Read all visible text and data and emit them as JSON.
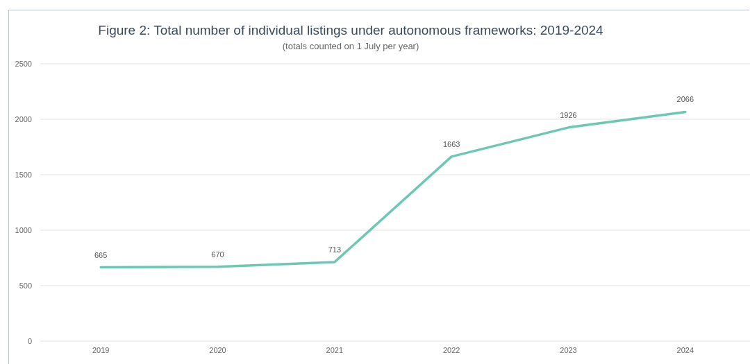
{
  "chart_data": {
    "type": "line",
    "title": "Figure 2: Total number of individual listings under autonomous frameworks: 2019-2024",
    "subtitle": "(totals counted on 1 July per year)",
    "categories": [
      "2019",
      "2020",
      "2021",
      "2022",
      "2023",
      "2024"
    ],
    "series": [
      {
        "color": "#6cc8b4",
        "values": [
          665,
          670,
          713,
          1663,
          1926,
          2066
        ]
      }
    ],
    "ylim": [
      0,
      2500
    ],
    "yticks": [
      0,
      500,
      1000,
      1500,
      2000,
      2500
    ],
    "grid": "y",
    "data_labels": true,
    "marker": "none",
    "line_style": "solid"
  }
}
